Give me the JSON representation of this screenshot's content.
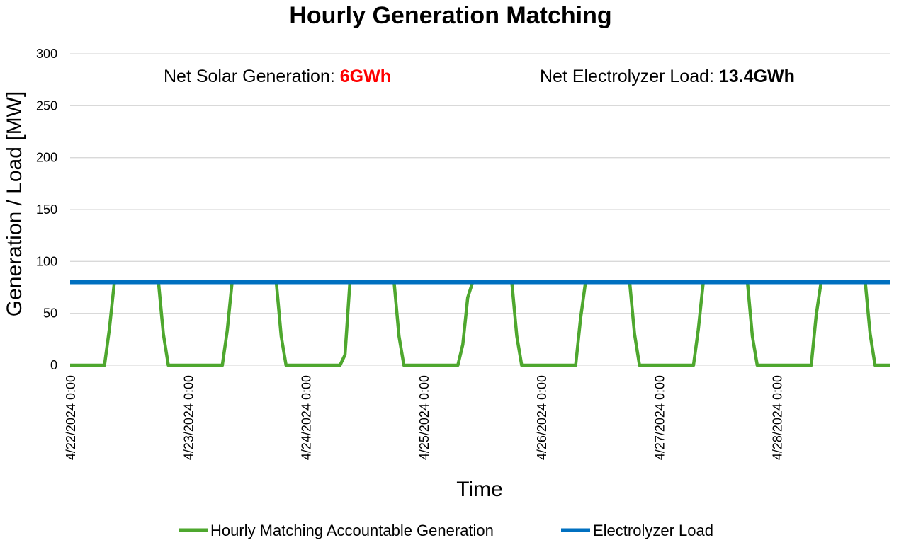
{
  "chart_data": {
    "type": "line",
    "title": "Hourly Generation Matching",
    "xlabel": "Time",
    "ylabel": "Generation / Load [MW]",
    "ylim": [
      0,
      300
    ],
    "yticks": [
      0,
      50,
      100,
      150,
      200,
      250,
      300
    ],
    "xlim_hours": [
      0,
      167
    ],
    "x_tick_labels": [
      "4/22/2024 0:00",
      "4/23/2024 0:00",
      "4/24/2024 0:00",
      "4/25/2024 0:00",
      "4/26/2024 0:00",
      "4/27/2024 0:00",
      "4/28/2024 0:00"
    ],
    "grid": true,
    "legend_position": "bottom",
    "annotations": {
      "solar_label": "Net Solar Generation: ",
      "solar_value": "6GWh",
      "solar_value_color": "#ff0000",
      "load_label": "Net Electrolyzer Load: ",
      "load_value": "13.4GWh"
    },
    "series": [
      {
        "name": "Hourly Matching Accountable Generation",
        "color": "#4ea72e",
        "points": [
          [
            0,
            0
          ],
          [
            7,
            0
          ],
          [
            8,
            35
          ],
          [
            9,
            80
          ],
          [
            18,
            80
          ],
          [
            19,
            30
          ],
          [
            20,
            0
          ],
          [
            31,
            0
          ],
          [
            32,
            33
          ],
          [
            33,
            80
          ],
          [
            42,
            80
          ],
          [
            43,
            28
          ],
          [
            44,
            0
          ],
          [
            55,
            0
          ],
          [
            56,
            10
          ],
          [
            57,
            80
          ],
          [
            66,
            80
          ],
          [
            67,
            28
          ],
          [
            68,
            0
          ],
          [
            79,
            0
          ],
          [
            80,
            20
          ],
          [
            81,
            65
          ],
          [
            82,
            80
          ],
          [
            90,
            80
          ],
          [
            91,
            28
          ],
          [
            92,
            0
          ],
          [
            103,
            0
          ],
          [
            104,
            45
          ],
          [
            105,
            80
          ],
          [
            114,
            80
          ],
          [
            115,
            30
          ],
          [
            116,
            0
          ],
          [
            127,
            0
          ],
          [
            128,
            35
          ],
          [
            129,
            80
          ],
          [
            138,
            80
          ],
          [
            139,
            28
          ],
          [
            140,
            0
          ],
          [
            151,
            0
          ],
          [
            152,
            48
          ],
          [
            153,
            80
          ],
          [
            162,
            80
          ],
          [
            163,
            30
          ],
          [
            164,
            0
          ],
          [
            167,
            0
          ]
        ]
      },
      {
        "name": "Electrolyzer Load",
        "color": "#0070c0",
        "points": [
          [
            0,
            80
          ],
          [
            167,
            80
          ]
        ]
      }
    ]
  }
}
